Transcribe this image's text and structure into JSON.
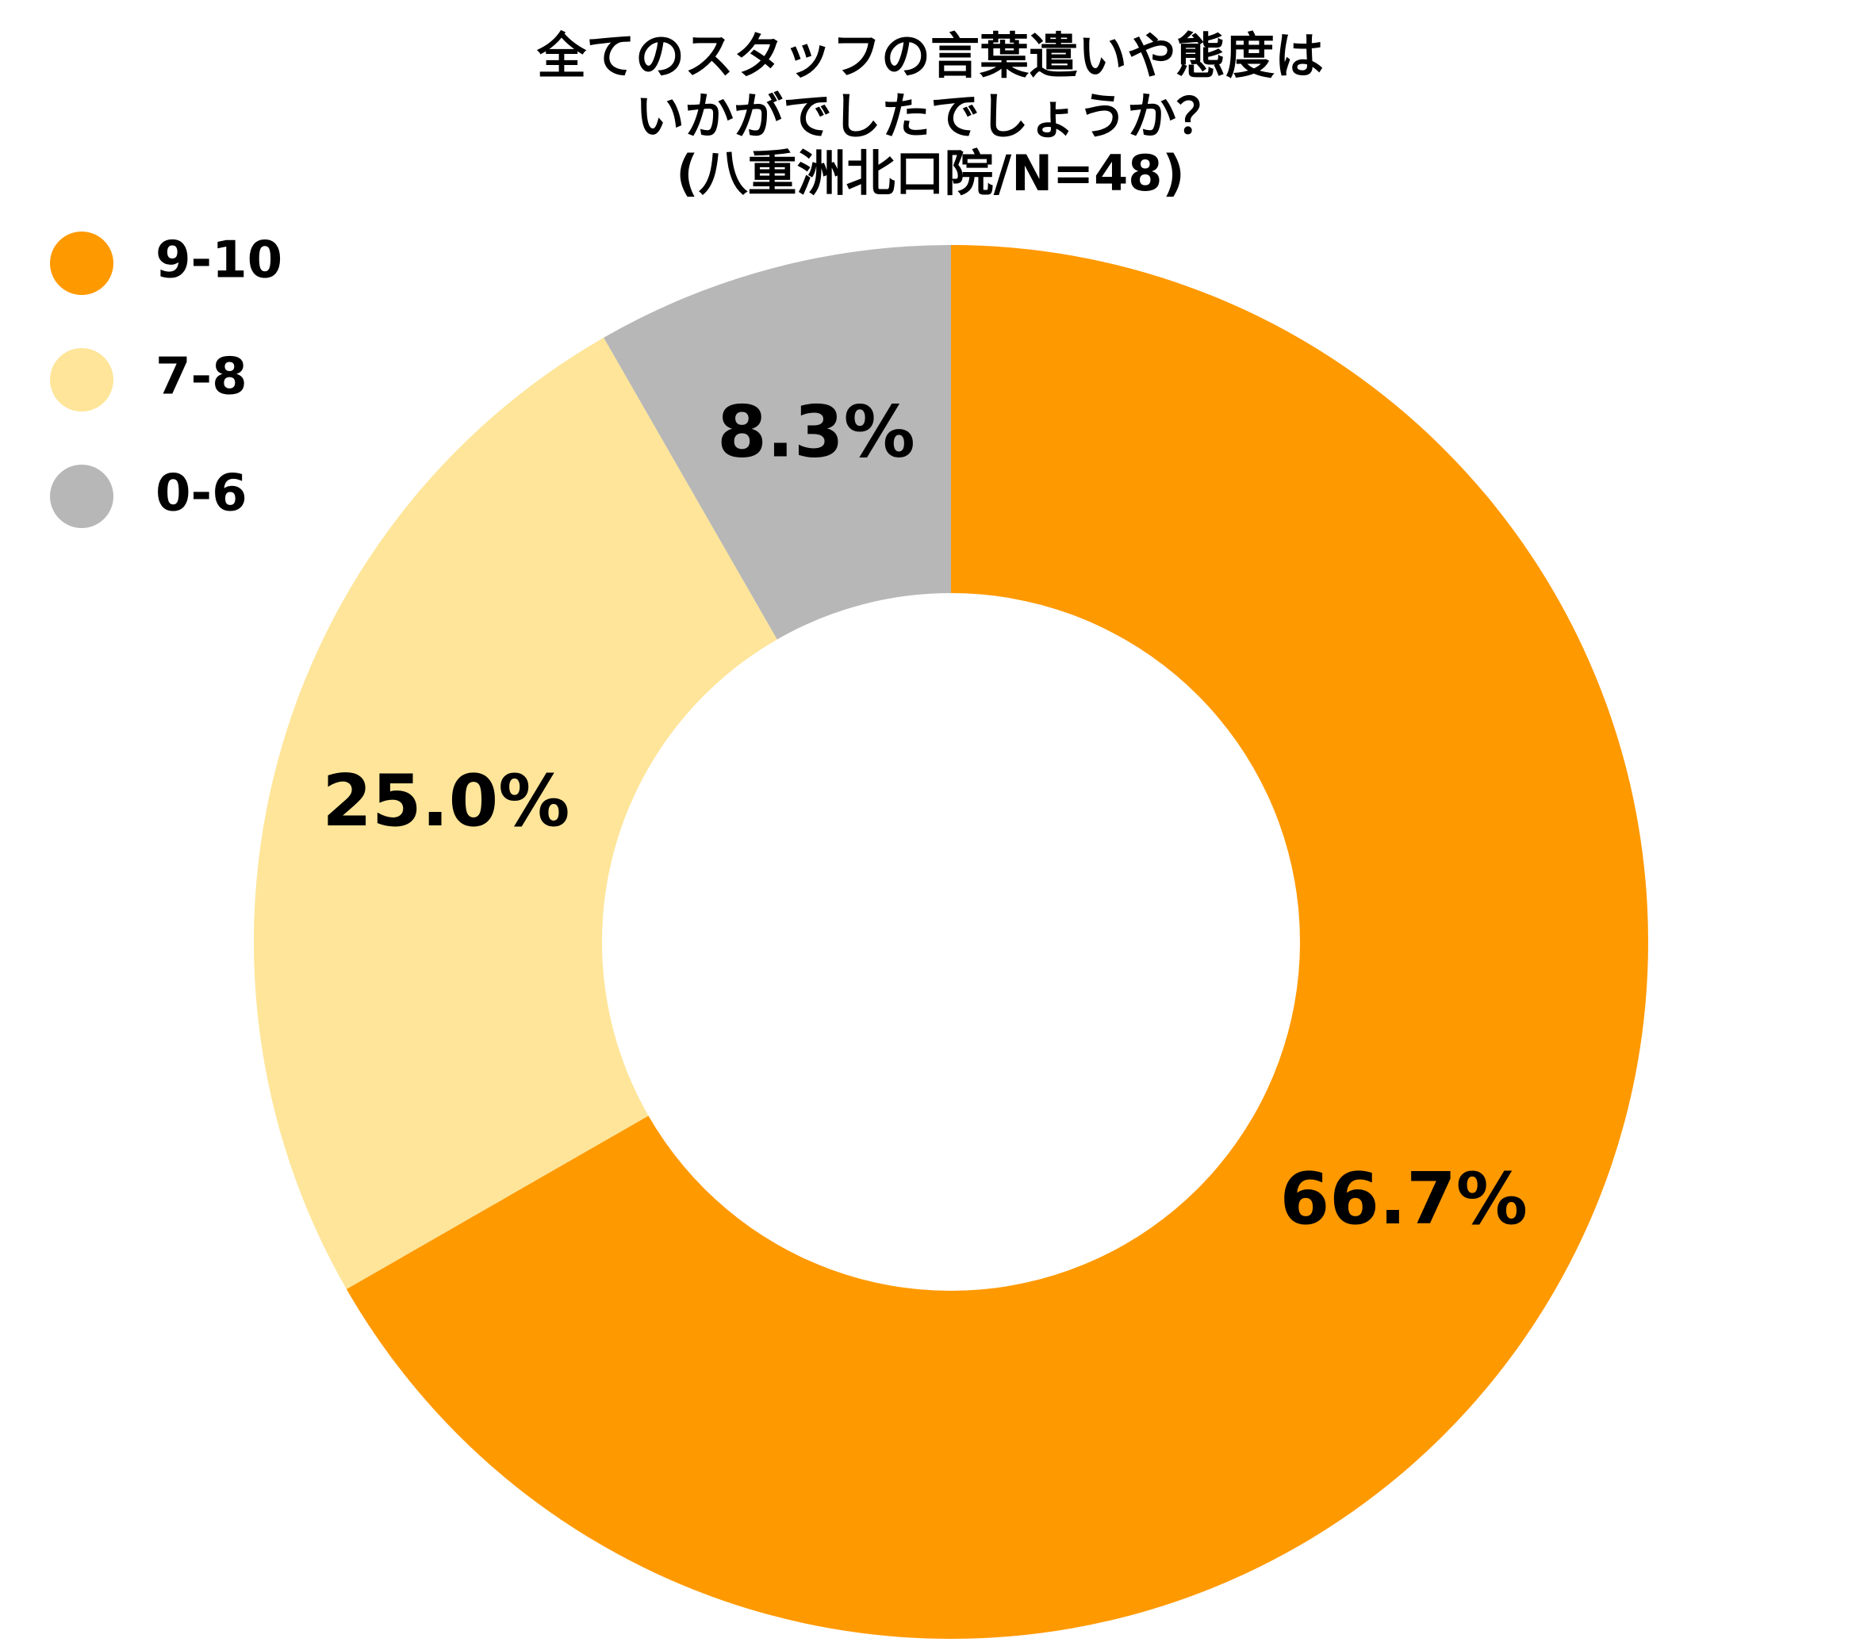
{
  "chart_data": {
    "type": "donut",
    "title": [
      "全てのスタッフの言葉遣いや態度は",
      "いかがでしたでしょうか？",
      "(八重洲北口院/N=48)"
    ],
    "categories": [
      "9-10",
      "7-8",
      "0-6"
    ],
    "values": [
      66.7,
      25.0,
      8.3
    ],
    "value_labels": [
      "66.7%",
      "25.0%",
      "8.3%"
    ],
    "colors": [
      "#ff9900",
      "#fee599",
      "#b7b7b7"
    ],
    "legend": "top-left"
  }
}
